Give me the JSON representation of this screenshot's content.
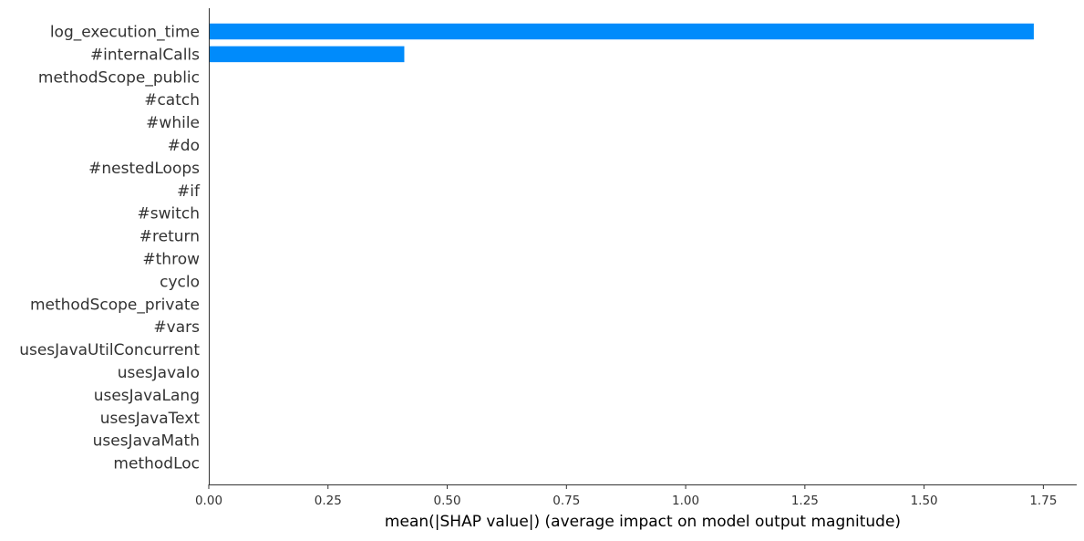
{
  "chart_data": {
    "type": "bar",
    "orientation": "horizontal",
    "categories": [
      "log_execution_time",
      "#internalCalls",
      "methodScope_public",
      "#catch",
      "#while",
      "#do",
      "#nestedLoops",
      "#if",
      "#switch",
      "#return",
      "#throw",
      "cyclo",
      "methodScope_private",
      "#vars",
      "usesJavaUtilConcurrent",
      "usesJavaIo",
      "usesJavaLang",
      "usesJavaText",
      "usesJavaMath",
      "methodLoc"
    ],
    "values": [
      1.73,
      0.41,
      0,
      0,
      0,
      0,
      0,
      0,
      0,
      0,
      0,
      0,
      0,
      0,
      0,
      0,
      0,
      0,
      0,
      0
    ],
    "xlabel": "mean(|SHAP value|) (average impact on model output magnitude)",
    "xlim": [
      0,
      1.82
    ],
    "xticks": [
      "0.00",
      "0.25",
      "0.50",
      "0.75",
      "1.00",
      "1.25",
      "1.50",
      "1.75"
    ],
    "grid": false,
    "bar_color": "#008bfb"
  }
}
